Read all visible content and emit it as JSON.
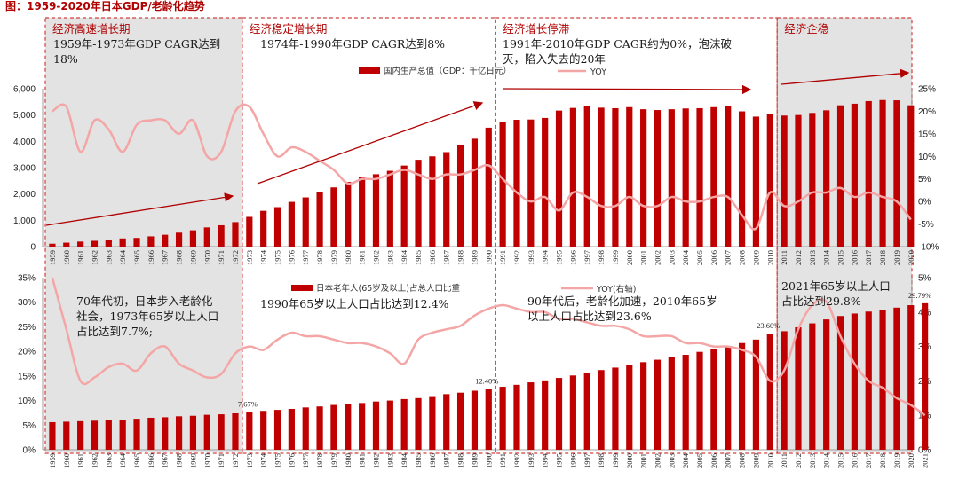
{
  "title": "图：1959-2020年日本GDP/老龄化趋势",
  "periods": [
    {
      "label": "经济高速增长期",
      "start": 1959,
      "end": 1972,
      "shaded": true
    },
    {
      "label": "经济稳定增长期",
      "start": 1973,
      "end": 1990,
      "shaded": false
    },
    {
      "label": "经济增长停滞",
      "start": 1991,
      "end": 2010,
      "shaded": false
    },
    {
      "label": "经济企稳",
      "start": 2011,
      "end": 2021,
      "shaded": true
    }
  ],
  "top_annotations": [
    {
      "period": 0,
      "lines": [
        "1959年-1973年GDP CAGR达到",
        "18%"
      ]
    },
    {
      "period": 1,
      "lines": [
        "1974年-1990年GDP CAGR达到8%"
      ]
    },
    {
      "period": 2,
      "lines": [
        "1991年-2010年GDP CAGR约为0%，泡沫破",
        "灭，陷入失去的20年"
      ]
    }
  ],
  "bottom_annotations": [
    {
      "period": 0,
      "lines": [
        "70年代初，日本步入老龄化",
        "社会，1973年65岁以上人口",
        "占比达到7.7%;"
      ]
    },
    {
      "period": 1,
      "lines": [
        "1990年65岁以上人口占比达到12.4%"
      ]
    },
    {
      "period": 2,
      "lines": [
        "90年代后，老龄化加速，2010年65岁",
        "以上人口占比达到23.6%"
      ]
    },
    {
      "period": 3,
      "lines": [
        "2021年65岁以上人口",
        "占比达到29.8%"
      ]
    }
  ],
  "colors": {
    "bar": "#c00000",
    "line": "#f4a6a6",
    "title": "#b00000",
    "shade": "#e3e3e3",
    "arrow": "#b00000"
  },
  "chart_data": [
    {
      "type": "bar",
      "title": "",
      "series": [
        {
          "name": "国内生产总值（GDP：千亿日元）",
          "axis": "left",
          "type": "bar",
          "x": [
            1959,
            1960,
            1961,
            1962,
            1963,
            1964,
            1965,
            1966,
            1967,
            1968,
            1969,
            1970,
            1971,
            1972,
            1973,
            1974,
            1975,
            1976,
            1977,
            1978,
            1979,
            1980,
            1981,
            1982,
            1983,
            1984,
            1985,
            1986,
            1987,
            1988,
            1989,
            1990,
            1991,
            1992,
            1993,
            1994,
            1995,
            1996,
            1997,
            1998,
            1999,
            2000,
            2001,
            2002,
            2003,
            2004,
            2005,
            2006,
            2007,
            2008,
            2009,
            2010,
            2011,
            2012,
            2013,
            2014,
            2015,
            2016,
            2017,
            2018,
            2019,
            2020
          ],
          "values": [
            110,
            150,
            190,
            220,
            260,
            310,
            330,
            390,
            450,
            530,
            620,
            730,
            810,
            930,
            1130,
            1360,
            1500,
            1700,
            1870,
            2080,
            2250,
            2460,
            2630,
            2750,
            2880,
            3080,
            3300,
            3430,
            3590,
            3860,
            4100,
            4520,
            4730,
            4820,
            4830,
            4890,
            5170,
            5270,
            5330,
            5280,
            5260,
            5300,
            5220,
            5190,
            5220,
            5250,
            5260,
            5300,
            5330,
            5140,
            4940,
            5050,
            4980,
            5000,
            5080,
            5180,
            5370,
            5430,
            5530,
            5570,
            5560,
            5370
          ]
        },
        {
          "name": "YOY",
          "axis": "right",
          "type": "line",
          "x": [
            1959,
            1960,
            1961,
            1962,
            1963,
            1964,
            1965,
            1966,
            1967,
            1968,
            1969,
            1970,
            1971,
            1972,
            1973,
            1974,
            1975,
            1976,
            1977,
            1978,
            1979,
            1980,
            1981,
            1982,
            1983,
            1984,
            1985,
            1986,
            1987,
            1988,
            1989,
            1990,
            1991,
            1992,
            1993,
            1994,
            1995,
            1996,
            1997,
            1998,
            1999,
            2000,
            2001,
            2002,
            2003,
            2004,
            2005,
            2006,
            2007,
            2008,
            2009,
            2010,
            2011,
            2012,
            2013,
            2014,
            2015,
            2016,
            2017,
            2018,
            2019,
            2020
          ],
          "values": [
            20,
            21,
            11,
            18,
            16,
            11,
            17,
            18,
            18,
            15,
            18,
            10,
            11,
            20,
            21,
            15,
            10,
            12,
            11,
            9,
            7,
            4,
            5,
            5,
            6,
            7,
            6,
            5,
            6,
            6,
            7,
            8,
            5,
            2,
            0,
            1,
            -2,
            2,
            1,
            -1,
            -1,
            1,
            -1,
            -1,
            1,
            0,
            0,
            1,
            1,
            -3,
            -6,
            2,
            -1,
            0,
            2,
            2,
            3,
            1,
            2,
            1,
            0,
            -4
          ]
        }
      ],
      "y_left": {
        "min": 0,
        "max": 6000,
        "ticks": [
          "0",
          "1,000",
          "2,000",
          "3,000",
          "4,000",
          "5,000",
          "6,000"
        ]
      },
      "y_right": {
        "min": -10,
        "max": 25,
        "ticks": [
          "-10%",
          "-5%",
          "0%",
          "5%",
          "10%",
          "15%",
          "20%",
          "25%"
        ]
      }
    },
    {
      "type": "bar",
      "title": "",
      "series": [
        {
          "name": "日本老年人(65岁及以上)占总人口比重",
          "axis": "left",
          "type": "bar",
          "x": [
            1959,
            1960,
            1961,
            1962,
            1963,
            1964,
            1965,
            1966,
            1967,
            1968,
            1969,
            1970,
            1971,
            1972,
            1973,
            1974,
            1975,
            1976,
            1977,
            1978,
            1979,
            1980,
            1981,
            1982,
            1983,
            1984,
            1985,
            1986,
            1987,
            1988,
            1989,
            1990,
            1991,
            1992,
            1993,
            1994,
            1995,
            1996,
            1997,
            1998,
            1999,
            2000,
            2001,
            2002,
            2003,
            2004,
            2005,
            2006,
            2007,
            2008,
            2009,
            2010,
            2011,
            2012,
            2013,
            2014,
            2015,
            2016,
            2017,
            2018,
            2019,
            2020,
            2021
          ],
          "values": [
            5.6,
            5.7,
            5.8,
            5.9,
            6.0,
            6.1,
            6.3,
            6.5,
            6.6,
            6.8,
            6.9,
            7.1,
            7.2,
            7.4,
            7.67,
            7.9,
            8.1,
            8.3,
            8.6,
            8.8,
            9.1,
            9.3,
            9.5,
            9.8,
            10.0,
            10.3,
            10.5,
            10.9,
            11.3,
            11.6,
            12.0,
            12.4,
            12.8,
            13.2,
            13.7,
            14.1,
            14.6,
            15.1,
            15.7,
            16.2,
            16.7,
            17.3,
            17.8,
            18.3,
            18.8,
            19.3,
            19.9,
            20.5,
            21.1,
            21.7,
            22.4,
            23.6,
            24.1,
            24.9,
            25.7,
            26.5,
            27.2,
            27.7,
            28.1,
            28.5,
            28.9,
            29.4,
            29.79
          ]
        },
        {
          "name": "YOY(右轴)",
          "axis": "right",
          "type": "line",
          "x": [
            1959,
            1960,
            1961,
            1962,
            1963,
            1964,
            1965,
            1966,
            1967,
            1968,
            1969,
            1970,
            1971,
            1972,
            1973,
            1974,
            1975,
            1976,
            1977,
            1978,
            1979,
            1980,
            1981,
            1982,
            1983,
            1984,
            1985,
            1986,
            1987,
            1988,
            1989,
            1990,
            1991,
            1992,
            1993,
            1994,
            1995,
            1996,
            1997,
            1998,
            1999,
            2000,
            2001,
            2002,
            2003,
            2004,
            2005,
            2006,
            2007,
            2008,
            2009,
            2010,
            2011,
            2012,
            2013,
            2014,
            2015,
            2016,
            2017,
            2018,
            2019,
            2020,
            2021
          ],
          "values": [
            5.0,
            3.5,
            2.0,
            2.1,
            2.4,
            2.5,
            2.3,
            2.8,
            3.0,
            2.5,
            2.3,
            2.1,
            2.2,
            2.8,
            3.0,
            2.9,
            3.2,
            3.4,
            3.3,
            3.3,
            3.2,
            3.1,
            3.1,
            3.0,
            2.8,
            2.5,
            3.2,
            3.4,
            3.5,
            3.6,
            3.9,
            4.1,
            4.2,
            4.1,
            4.0,
            4.0,
            3.8,
            3.8,
            3.7,
            3.6,
            3.6,
            3.5,
            3.3,
            3.3,
            3.3,
            3.1,
            3.1,
            3.0,
            3.0,
            2.9,
            2.7,
            2.0,
            2.3,
            3.5,
            4.2,
            4.3,
            3.3,
            2.5,
            2.0,
            1.8,
            1.5,
            1.3,
            1.0
          ]
        }
      ],
      "data_labels": [
        {
          "x": 1973,
          "text": "7.67%"
        },
        {
          "x": 1990,
          "text": "12.40%"
        },
        {
          "x": 2010,
          "text": "23.60%"
        },
        {
          "x": 2021,
          "text": "29.79%"
        }
      ],
      "y_left": {
        "min": 0,
        "max": 35,
        "ticks": [
          "0%",
          "5%",
          "10%",
          "15%",
          "20%",
          "25%",
          "30%",
          "35%"
        ]
      },
      "y_right": {
        "min": 0,
        "max": 5,
        "ticks": [
          "0%",
          "1%",
          "2%",
          "3%",
          "4%",
          "5%"
        ]
      }
    }
  ]
}
